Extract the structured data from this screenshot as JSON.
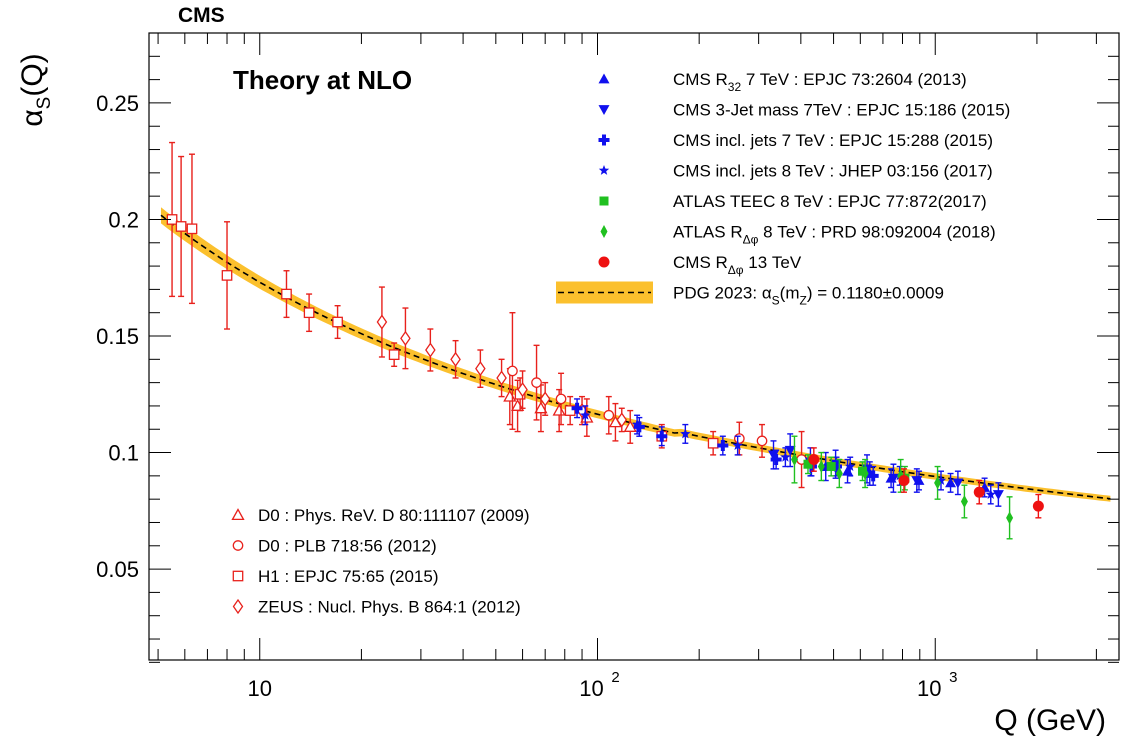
{
  "header": {
    "experiment": "CMS",
    "theory": "Theory at NLO"
  },
  "chart_data": {
    "type": "scatter",
    "x_scale": "log",
    "xlim": [
      4.7,
      3500
    ],
    "ylim": [
      0.011,
      0.28
    ],
    "xlabel": "Q (GeV)",
    "ylabel": "αS(Q)",
    "x_ticks": [
      {
        "value": 10,
        "label": "10",
        "exp": ""
      },
      {
        "value": 100,
        "label": "10",
        "exp": "2"
      },
      {
        "value": 1000,
        "label": "10",
        "exp": "3"
      }
    ],
    "y_ticks": [
      {
        "value": 0.05,
        "label": "0.05"
      },
      {
        "value": 0.1,
        "label": "0.1"
      },
      {
        "value": 0.15,
        "label": "0.15"
      },
      {
        "value": 0.2,
        "label": "0.2"
      },
      {
        "value": 0.25,
        "label": "0.25"
      }
    ],
    "band": {
      "label": "PDG 2023: αS(mZ) = 0.1180±0.0009",
      "alpha_mz": 0.118,
      "uncertainty": 0.0009,
      "fill_color": "#fbc02d",
      "line_color": "#000000"
    },
    "legend_right": [
      {
        "key": "cms_r32",
        "label": "CMS R32 7 TeV : EPJC 73:2604 (2013)"
      },
      {
        "key": "cms_3jet",
        "label": "CMS 3-Jet mass 7TeV : EPJC 15:186 (2015)"
      },
      {
        "key": "cms_incl7",
        "label": "CMS incl. jets 7 TeV : EPJC 15:288 (2015)"
      },
      {
        "key": "cms_incl8",
        "label": "CMS incl. jets 8 TeV : JHEP 03:156 (2017)"
      },
      {
        "key": "atlas_teec",
        "label": "ATLAS TEEC 8 TeV : EPJC 77:872(2017)"
      },
      {
        "key": "atlas_rdphi",
        "label": "ATLAS RΔφ 8 TeV : PRD 98:092004 (2018)"
      },
      {
        "key": "cms_rdphi13",
        "label": "CMS RΔφ 13 TeV"
      }
    ],
    "legend_left": [
      {
        "key": "d0_2009",
        "label": "D0 : Phys. ReV. D 80:111107 (2009)"
      },
      {
        "key": "d0_2012",
        "label": "D0 : PLB 718:56 (2012)"
      },
      {
        "key": "h1",
        "label": "H1 : EPJC 75:65 (2015)"
      },
      {
        "key": "zeus",
        "label": "ZEUS : Nucl. Phys. B 864:1 (2012)"
      }
    ],
    "series": [
      {
        "key": "d0_2009",
        "marker": "triangle-open",
        "color": "#e8211c",
        "points": [
          [
            55,
            0.124,
            0.012
          ],
          [
            58,
            0.12,
            0.011
          ],
          [
            68,
            0.119,
            0.01
          ],
          [
            77,
            0.118,
            0.009
          ],
          [
            93,
            0.115,
            0.008
          ],
          [
            113,
            0.113,
            0.008
          ],
          [
            125,
            0.111,
            0.007
          ]
        ]
      },
      {
        "key": "d0_2012",
        "marker": "circle-open",
        "color": "#e8211c",
        "points": [
          [
            56,
            0.135,
            0.025
          ],
          [
            66,
            0.13,
            0.016
          ],
          [
            78,
            0.123,
            0.011
          ],
          [
            108,
            0.116,
            0.008
          ],
          [
            263,
            0.106,
            0.007
          ],
          [
            307,
            0.105,
            0.007
          ],
          [
            402,
            0.097,
            0.012
          ]
        ]
      },
      {
        "key": "h1",
        "marker": "square-open",
        "color": "#e8211c",
        "points": [
          [
            5.5,
            0.2,
            0.033
          ],
          [
            5.85,
            0.197,
            0.03
          ],
          [
            6.3,
            0.196,
            0.032
          ],
          [
            8,
            0.176,
            0.023
          ],
          [
            12,
            0.168,
            0.01
          ],
          [
            14,
            0.16,
            0.008
          ],
          [
            17,
            0.156,
            0.007
          ],
          [
            25,
            0.142,
            0.005
          ],
          [
            59,
            0.125,
            0.007
          ],
          [
            83,
            0.118,
            0.006
          ],
          [
            155,
            0.107,
            0.005
          ],
          [
            220,
            0.104,
            0.005
          ]
        ]
      },
      {
        "key": "zeus",
        "marker": "diamond-open",
        "color": "#e8211c",
        "points": [
          [
            23,
            0.156,
            0.015
          ],
          [
            27,
            0.149,
            0.013
          ],
          [
            32,
            0.144,
            0.009
          ],
          [
            38,
            0.14,
            0.008
          ],
          [
            45,
            0.136,
            0.008
          ],
          [
            52,
            0.132,
            0.008
          ],
          [
            60,
            0.127,
            0.008
          ],
          [
            70,
            0.123,
            0.007
          ],
          [
            90,
            0.118,
            0.006
          ],
          [
            118,
            0.114,
            0.005
          ]
        ]
      },
      {
        "key": "cms_r32",
        "marker": "triangle-up",
        "color": "#1010ee",
        "points": [
          [
            474,
            0.094,
            0.006
          ],
          [
            550,
            0.092,
            0.005
          ],
          [
            640,
            0.091,
            0.005
          ],
          [
            740,
            0.089,
            0.004
          ],
          [
            895,
            0.088,
            0.004
          ],
          [
            1110,
            0.087,
            0.004
          ],
          [
            1400,
            0.085,
            0.004
          ]
        ]
      },
      {
        "key": "cms_3jet",
        "marker": "triangle-down",
        "color": "#1010ee",
        "points": [
          [
            332,
            0.099,
            0.006
          ],
          [
            372,
            0.101,
            0.007
          ],
          [
            427,
            0.096,
            0.006
          ],
          [
            507,
            0.095,
            0.006
          ],
          [
            628,
            0.093,
            0.006
          ],
          [
            752,
            0.089,
            0.006
          ],
          [
            882,
            0.088,
            0.005
          ],
          [
            1167,
            0.087,
            0.005
          ],
          [
            1538,
            0.082,
            0.005
          ]
        ]
      },
      {
        "key": "cms_incl7",
        "marker": "cross",
        "color": "#1010ee",
        "points": [
          [
            87,
            0.119,
            0.004
          ],
          [
            133,
            0.111,
            0.004
          ],
          [
            155,
            0.107,
            0.004
          ],
          [
            235,
            0.103,
            0.004
          ],
          [
            338,
            0.097,
            0.004
          ],
          [
            430,
            0.094,
            0.004
          ],
          [
            510,
            0.094,
            0.004
          ],
          [
            655,
            0.09,
            0.004
          ]
        ]
      },
      {
        "key": "cms_incl8",
        "marker": "star",
        "color": "#1010ee",
        "points": [
          [
            92,
            0.116,
            0.004
          ],
          [
            131,
            0.112,
            0.004
          ],
          [
            182,
            0.108,
            0.004
          ],
          [
            260,
            0.103,
            0.004
          ],
          [
            360,
            0.098,
            0.004
          ],
          [
            560,
            0.094,
            0.004
          ],
          [
            785,
            0.09,
            0.004
          ],
          [
            1040,
            0.088,
            0.004
          ],
          [
            1460,
            0.082,
            0.004
          ]
        ]
      },
      {
        "key": "atlas_teec",
        "marker": "square",
        "color": "#20c020",
        "points": [
          [
            420,
            0.095,
            0.004
          ],
          [
            492,
            0.094,
            0.004
          ],
          [
            609,
            0.092,
            0.004
          ],
          [
            813,
            0.089,
            0.005
          ]
        ]
      },
      {
        "key": "atlas_rdphi",
        "marker": "diamond",
        "color": "#20c020",
        "points": [
          [
            383,
            0.097,
            0.01
          ],
          [
            460,
            0.094,
            0.006
          ],
          [
            520,
            0.091,
            0.006
          ],
          [
            620,
            0.091,
            0.006
          ],
          [
            790,
            0.09,
            0.007
          ],
          [
            1016,
            0.087,
            0.007
          ],
          [
            1220,
            0.079,
            0.007
          ],
          [
            1660,
            0.072,
            0.009
          ]
        ]
      },
      {
        "key": "cms_rdphi13",
        "marker": "circle",
        "color": "#ee1111",
        "points": [
          [
            437,
            0.097,
            0.005
          ],
          [
            808,
            0.088,
            0.005
          ],
          [
            1350,
            0.083,
            0.005
          ],
          [
            2020,
            0.077,
            0.005
          ]
        ]
      }
    ]
  }
}
